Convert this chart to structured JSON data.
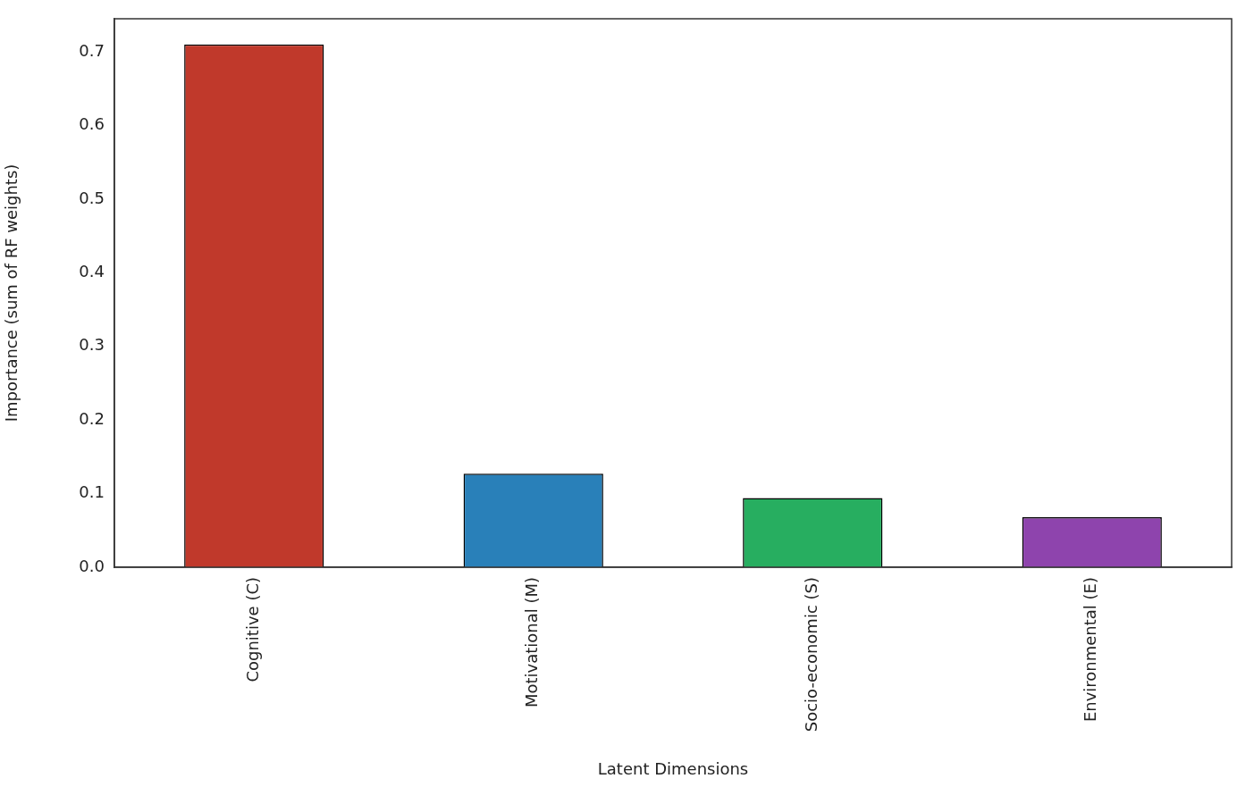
{
  "chart_data": {
    "type": "bar",
    "xlabel": "Latent Dimensions",
    "ylabel": "Importance (sum of RF weights)",
    "categories": [
      "Cognitive (C)",
      "Motivational (M)",
      "Socio-economic (S)",
      "Environmental (E)"
    ],
    "values": [
      0.71,
      0.127,
      0.094,
      0.068
    ],
    "colors": [
      "#c0392b",
      "#2980b9",
      "#27ae60",
      "#8e44ad"
    ],
    "ylim": [
      0,
      0.745
    ],
    "yticks": [
      {
        "value": 0,
        "label": "0.0"
      },
      {
        "value": 0.1,
        "label": "0.1"
      },
      {
        "value": 0.2,
        "label": "0.2"
      },
      {
        "value": 0.3,
        "label": "0.3"
      },
      {
        "value": 0.4,
        "label": "0.4"
      },
      {
        "value": 0.5,
        "label": "0.5"
      },
      {
        "value": 0.6,
        "label": "0.6"
      },
      {
        "value": 0.7,
        "label": "0.7"
      }
    ],
    "grid": false
  }
}
